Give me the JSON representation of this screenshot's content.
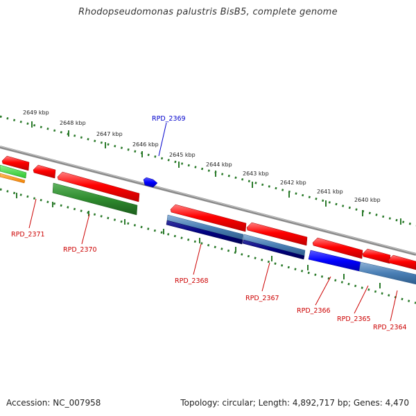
{
  "title": "Rhodopseudomonas palustris BisB5, complete genome",
  "footer": {
    "accession": "Accession: NC_007958",
    "topology": "Topology: circular; Length: 4,892,717 bp; Genes: 4,470"
  },
  "colors": {
    "forward_gene": "#ff0000",
    "reverse_gene_green": "#2e8b2e",
    "reverse_gene_steelblue": "#4a7fb5",
    "reverse_gene_navy": "#000080",
    "highlight_gene": "#0000ff",
    "backbone": "#8a8a8a",
    "ticks": "#2a7a2a"
  },
  "scale_labels": [
    "2649 kbp",
    "2648 kbp",
    "2647 kbp",
    "2646 kbp",
    "2645 kbp",
    "2644 kbp",
    "2643 kbp",
    "2642 kbp",
    "2641 kbp",
    "2640 kbp"
  ],
  "gene_labels": [
    {
      "text": "RPD_2369",
      "color": "#0000cc"
    },
    {
      "text": "RPD_2371",
      "color": "#cc0000"
    },
    {
      "text": "RPD_2370",
      "color": "#cc0000"
    },
    {
      "text": "RPD_2368",
      "color": "#cc0000"
    },
    {
      "text": "RPD_2367",
      "color": "#cc0000"
    },
    {
      "text": "RPD_2366",
      "color": "#cc0000"
    },
    {
      "text": "RPD_2365",
      "color": "#cc0000"
    },
    {
      "text": "RPD_2364",
      "color": "#cc0000"
    }
  ]
}
